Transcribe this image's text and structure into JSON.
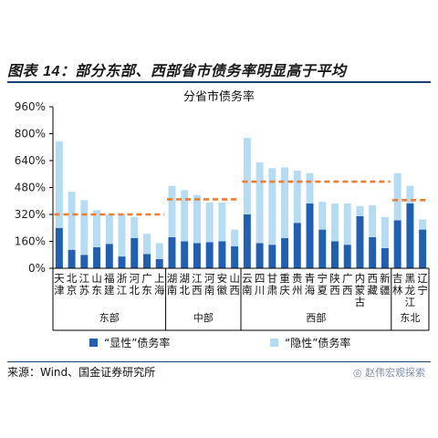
{
  "figure": {
    "label": "图表14",
    "title_prefix": "图表 ",
    "title_num": "14",
    "title_rest": "：部分东部、西部省市债务率明显高于平均"
  },
  "source": "来源：Wind、国金证券研究所",
  "watermark": "赵伟宏观探索",
  "colors": {
    "explicit": "#1f5fb4",
    "hidden": "#b6dcf4",
    "average": "#ed7d31"
  },
  "chart_data": {
    "type": "bar",
    "stacked": true,
    "title": "分省市债务率",
    "ylim": [
      0,
      960
    ],
    "yticks": [
      "0%",
      "160%",
      "320%",
      "480%",
      "640%",
      "800%",
      "960%"
    ],
    "ytick_values": [
      0,
      160,
      320,
      480,
      640,
      800,
      960
    ],
    "categories": [
      [
        "天",
        "津"
      ],
      [
        "北",
        "京"
      ],
      [
        "江",
        "苏"
      ],
      [
        "山",
        "东"
      ],
      [
        "福",
        "建"
      ],
      [
        "浙",
        "江"
      ],
      [
        "河",
        "北"
      ],
      [
        "广",
        "东"
      ],
      [
        "上",
        "海"
      ],
      [
        "湖",
        "南"
      ],
      [
        "湖",
        "北"
      ],
      [
        "江",
        "西"
      ],
      [
        "河",
        "南"
      ],
      [
        "安",
        "徽"
      ],
      [
        "山",
        "西"
      ],
      [
        "云",
        "南"
      ],
      [
        "四",
        "川"
      ],
      [
        "甘",
        "肃"
      ],
      [
        "重",
        "庆"
      ],
      [
        "贵",
        "州"
      ],
      [
        "青",
        "海"
      ],
      [
        "宁",
        "夏"
      ],
      [
        "陕",
        "西"
      ],
      [
        "广",
        "西"
      ],
      [
        "内",
        "蒙",
        "古"
      ],
      [
        "西",
        "藏"
      ],
      [
        "新",
        "疆"
      ],
      [
        "吉",
        "林"
      ],
      [
        "黑",
        "龙",
        "江"
      ],
      [
        "辽",
        "宁"
      ]
    ],
    "groups": [
      {
        "name": "东部",
        "start": 0,
        "end": 8,
        "average": 320
      },
      {
        "name": "中部",
        "start": 9,
        "end": 14,
        "average": 410
      },
      {
        "name": "西部",
        "start": 15,
        "end": 26,
        "average": 515
      },
      {
        "name": "东北",
        "start": 27,
        "end": 29,
        "average": 405
      }
    ],
    "series": [
      {
        "name": "“显性”债务率",
        "values": [
          240,
          110,
          80,
          125,
          145,
          70,
          180,
          85,
          55,
          185,
          160,
          150,
          155,
          160,
          130,
          320,
          150,
          140,
          180,
          270,
          385,
          230,
          160,
          140,
          310,
          185,
          120,
          285,
          385,
          230
        ]
      },
      {
        "name": "“隐性”债务率",
        "values": [
          515,
          345,
          325,
          220,
          175,
          255,
          125,
          120,
          95,
          305,
          305,
          285,
          235,
          230,
          100,
          455,
          480,
          455,
          420,
          310,
          180,
          165,
          225,
          245,
          60,
          190,
          185,
          280,
          105,
          60
        ]
      }
    ]
  }
}
